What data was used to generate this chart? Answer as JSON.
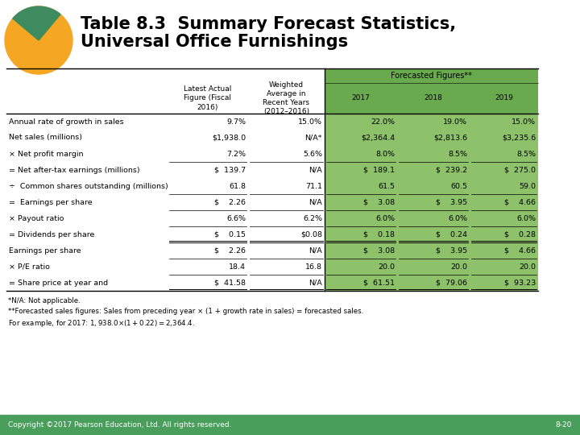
{
  "title_line1": "Table 8.3  Summary Forecast Statistics,",
  "title_line2": "Universal Office Furnishings",
  "col_headers_top": "Forecasted Figures**",
  "col_headers": [
    "",
    "Latest Actual\nFigure (Fiscal\n2016)",
    "Weighted\nAverage in\nRecent Years\n(2012–2016)",
    "2017",
    "2018",
    "2019"
  ],
  "rows": [
    [
      "Annual rate of growth in sales",
      "9.7%",
      "15.0%",
      "22.0%",
      "19.0%",
      "15.0%"
    ],
    [
      "Net sales (millions)",
      "$1,938.0",
      "N/A*",
      "$2,364.4",
      "$2,813.6",
      "$3,235.6"
    ],
    [
      "× Net profit margin",
      "7.2%",
      "5.6%",
      "8.0%",
      "8.5%",
      "8.5%"
    ],
    [
      "= Net after-tax earnings (millions)",
      "$  139.7",
      "N/A",
      "$  189.1",
      "$  239.2",
      "$  275.0"
    ],
    [
      "÷  Common shares outstanding (millions)",
      "61.8",
      "71.1",
      "61.5",
      "60.5",
      "59.0"
    ],
    [
      "=  Earnings per share",
      "$    2.26",
      "N/A",
      "$    3.08",
      "$    3.95",
      "$    4.66"
    ],
    [
      "× Payout ratio",
      "6.6%",
      "6.2%",
      "6.0%",
      "6.0%",
      "6.0%"
    ],
    [
      "= Dividends per share",
      "$    0.15",
      "$0.08",
      "$    0.18",
      "$    0.24",
      "$    0.28"
    ],
    [
      "Earnings per share",
      "$    2.26",
      "N/A",
      "$    3.08",
      "$    3.95",
      "$    4.66"
    ],
    [
      "× P/E ratio",
      "18.4",
      "16.8",
      "20.0",
      "20.0",
      "20.0"
    ],
    [
      "= Share price at year and",
      "$  41.58",
      "N/A",
      "$  61.51",
      "$  79.06",
      "$  93.23"
    ]
  ],
  "footnotes": [
    "*N/A: Not applicable.",
    "**Forecasted sales figures: Sales from preceding year × (1 + growth rate in sales) = forecasted sales.",
    "For example, for 2017: $1,938.0 × (1 + 0.22) = $2,364.4."
  ],
  "footer_left": "Copyright ©2017 Pearson Education, Ltd. All rights reserved.",
  "footer_right": "8-20",
  "green_header_bg": "#6aaa4e",
  "green_cell_bg": "#8dc26a",
  "footer_bg": "#4a9e5c",
  "orange_color": "#f5a623",
  "dark_green_color": "#3d8b5e"
}
